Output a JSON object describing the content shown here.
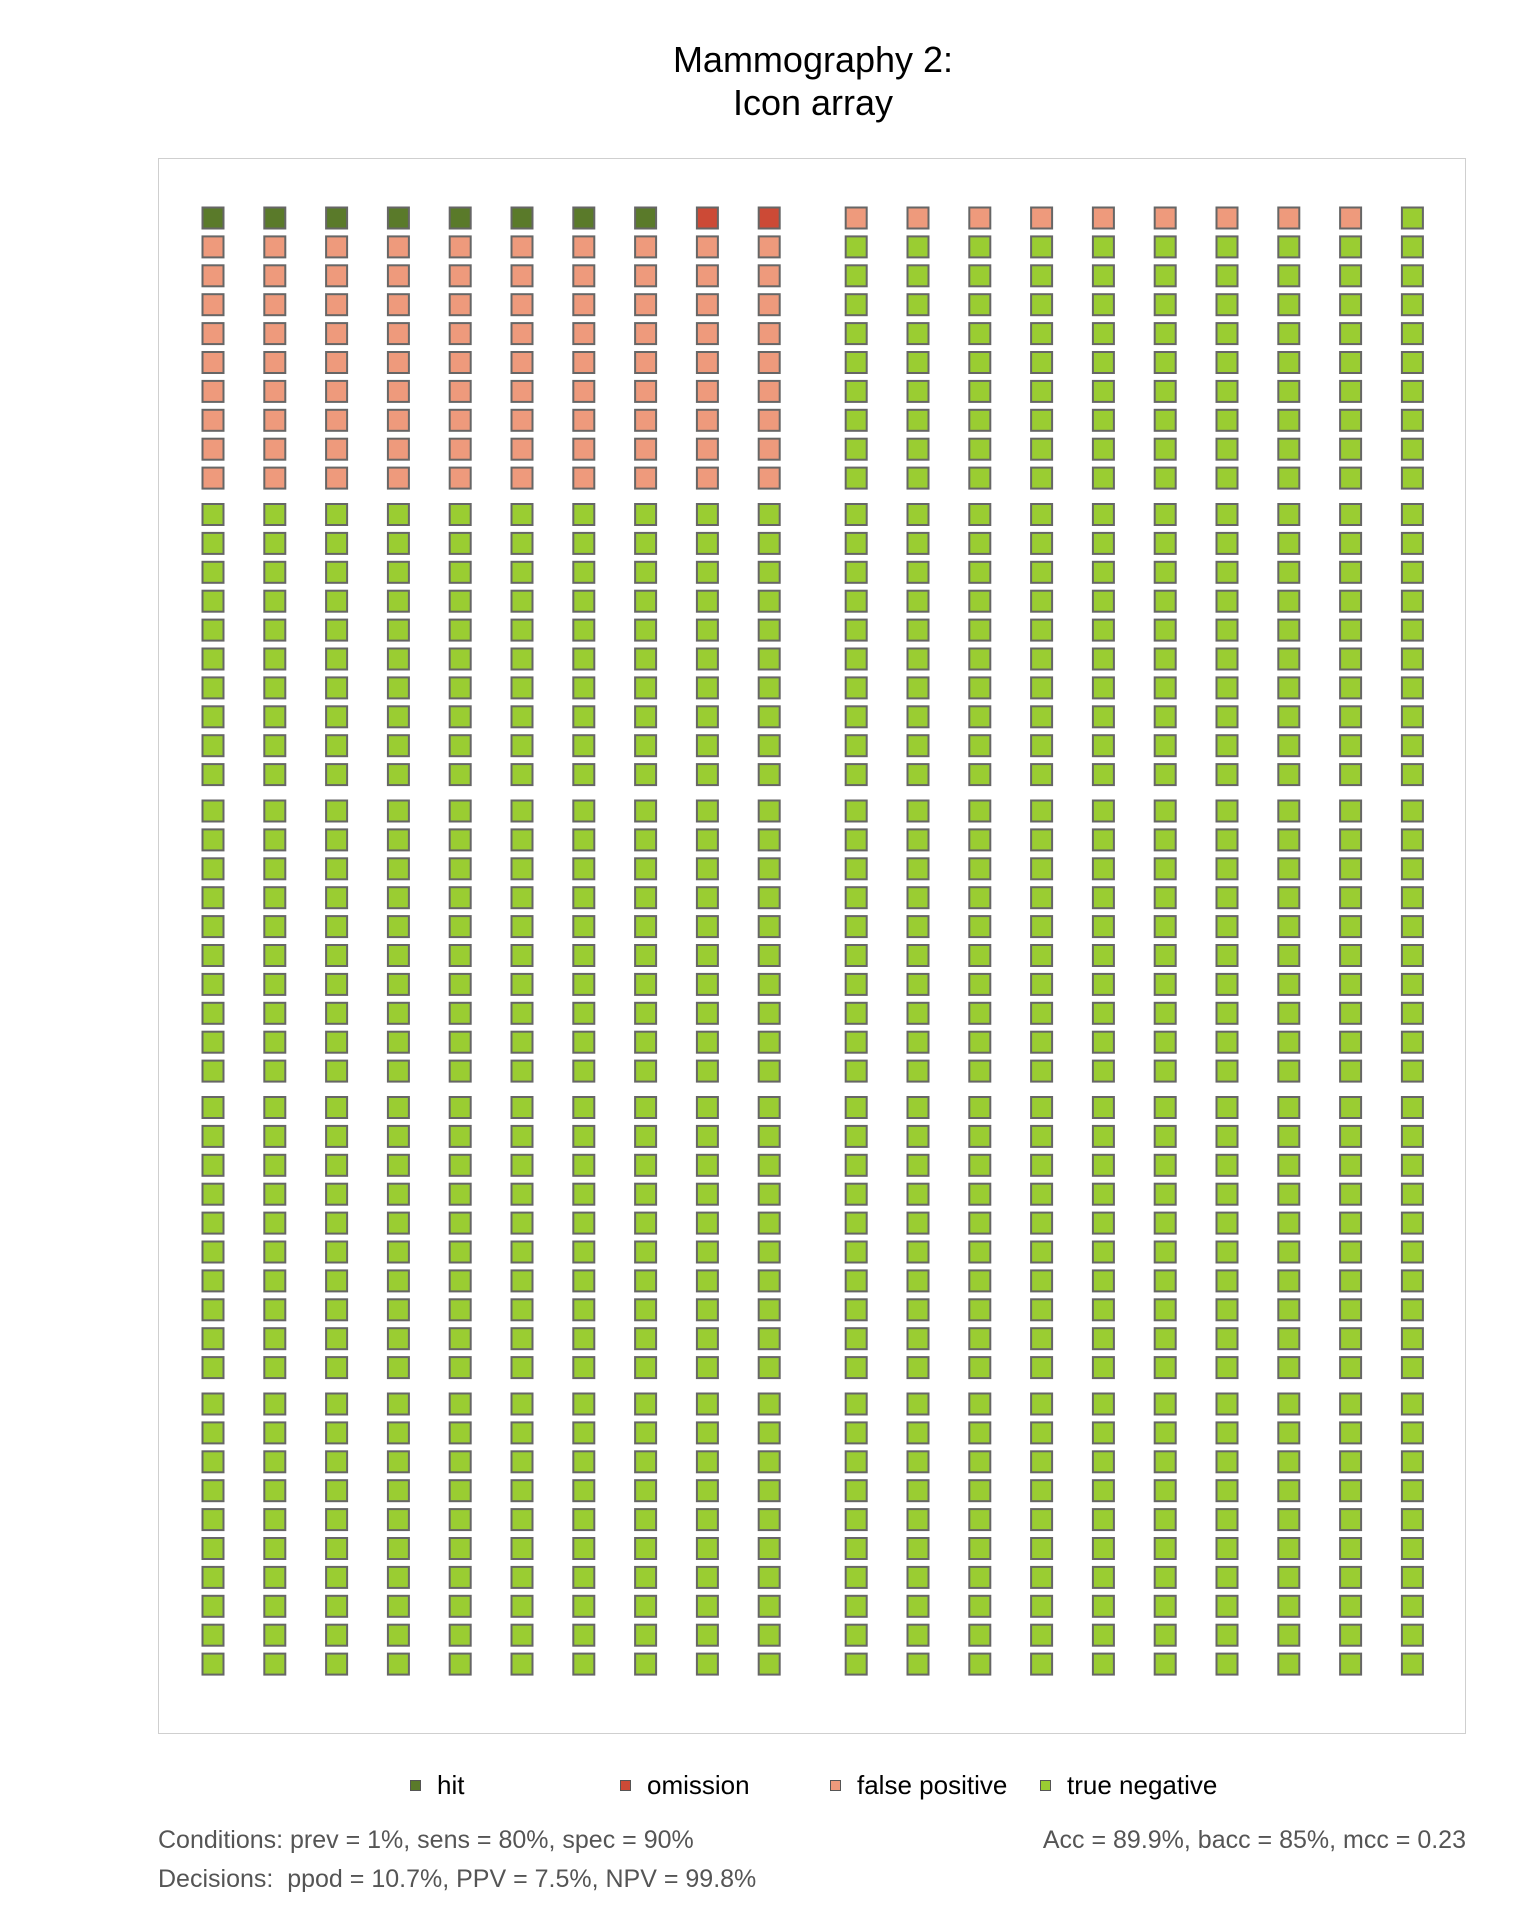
{
  "chart_data": {
    "type": "icon array",
    "title_line1": "Mammography 2:",
    "title_line2": "Icon array",
    "grid": {
      "blocks_across": 2,
      "blocks_down": 5,
      "columns_per_block": 10,
      "rows_per_block": 10,
      "fill_order": "left block top-to-bottom, then right block; columns left-to-right within each block row"
    },
    "counts": {
      "hit": 8,
      "omission": 2,
      "false positive": 99,
      "true negative": 891
    },
    "legend": [
      {
        "key": "hit",
        "label": "hit",
        "color": "#5a7a2a"
      },
      {
        "key": "omission",
        "label": "omission",
        "color": "#cc4a36"
      },
      {
        "key": "false positive",
        "label": "false positive",
        "color": "#ee9a7c"
      },
      {
        "key": "true negative",
        "label": "true negative",
        "color": "#9acd32"
      }
    ],
    "icon_stroke": "#666666",
    "footer": {
      "conditions": "Conditions: prev = 1%, sens = 80%, spec = 90%",
      "decisions": "Decisions:  ppod = 10.7%, PPV = 7.5%, NPV = 99.8%",
      "accuracy": "Acc = 89.9%, bacc = 85%, mcc = 0.23"
    }
  }
}
